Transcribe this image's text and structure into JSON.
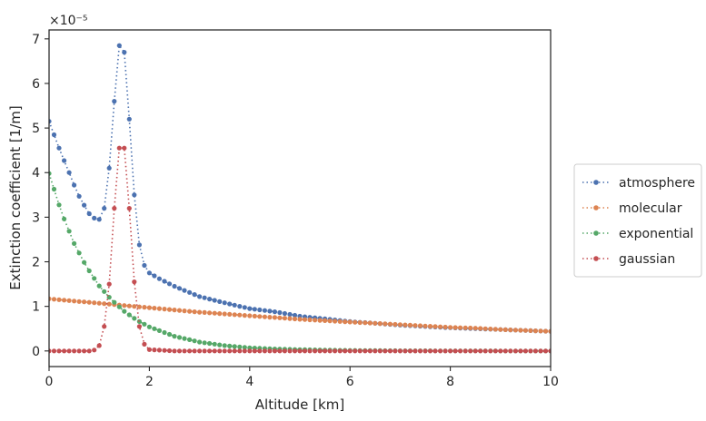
{
  "chart_data": {
    "type": "line",
    "title": "",
    "xlabel": "Altitude [km]",
    "ylabel": "Extinction coefficient [1/m]",
    "y_scale_label": "×10⁻⁵",
    "xlim": [
      0,
      10
    ],
    "ylim": [
      -0.35,
      7.2
    ],
    "x_ticks": [
      0,
      2,
      4,
      6,
      8,
      10
    ],
    "y_ticks": [
      0,
      1,
      2,
      3,
      4,
      5,
      6,
      7
    ],
    "grid": false,
    "legend_position": "right, outside plot",
    "series": [
      {
        "name": "atmosphere",
        "color": "#4c72b0",
        "x": [
          0.0,
          0.1,
          0.2,
          0.3,
          0.4,
          0.5,
          0.6,
          0.7,
          0.8,
          0.9,
          1.0,
          1.1,
          1.2,
          1.3,
          1.4,
          1.5,
          1.6,
          1.7,
          1.8,
          1.9,
          2.0,
          2.2,
          2.5,
          3.0,
          3.5,
          4.0,
          4.5,
          5.0,
          5.5,
          6.0,
          6.5,
          7.0,
          7.5,
          8.0,
          8.5,
          9.0,
          9.5,
          10.0
        ],
        "values": [
          5.15,
          4.85,
          4.55,
          4.27,
          4.0,
          3.72,
          3.47,
          3.27,
          3.08,
          2.98,
          2.95,
          3.2,
          4.1,
          5.6,
          6.85,
          6.7,
          5.2,
          3.5,
          2.38,
          1.92,
          1.75,
          1.62,
          1.45,
          1.22,
          1.08,
          0.95,
          0.88,
          0.78,
          0.72,
          0.66,
          0.62,
          0.58,
          0.55,
          0.52,
          0.5,
          0.48,
          0.46,
          0.44
        ]
      },
      {
        "name": "molecular",
        "color": "#dd8452",
        "x": [
          0.0,
          0.5,
          1.0,
          1.5,
          2.0,
          2.5,
          3.0,
          3.5,
          4.0,
          4.5,
          5.0,
          5.5,
          6.0,
          6.5,
          7.0,
          7.5,
          8.0,
          8.5,
          9.0,
          9.5,
          10.0
        ],
        "values": [
          1.17,
          1.12,
          1.07,
          1.02,
          0.97,
          0.92,
          0.87,
          0.83,
          0.79,
          0.75,
          0.71,
          0.68,
          0.65,
          0.62,
          0.59,
          0.56,
          0.53,
          0.51,
          0.48,
          0.46,
          0.44
        ]
      },
      {
        "name": "exponential",
        "color": "#55a868",
        "x": [
          0.0,
          0.25,
          0.5,
          0.75,
          1.0,
          1.25,
          1.5,
          1.75,
          2.0,
          2.5,
          3.0,
          3.5,
          4.0,
          4.5,
          5.0,
          5.5,
          6.0,
          7.0,
          8.0,
          9.0,
          10.0
        ],
        "values": [
          3.98,
          3.1,
          2.41,
          1.88,
          1.46,
          1.14,
          0.89,
          0.69,
          0.54,
          0.33,
          0.2,
          0.12,
          0.07,
          0.045,
          0.03,
          0.02,
          0.012,
          0.005,
          0.002,
          0.001,
          0.0
        ]
      },
      {
        "name": "gaussian",
        "color": "#c44e52",
        "x": [
          0.0,
          0.5,
          0.8,
          0.9,
          1.0,
          1.1,
          1.2,
          1.3,
          1.4,
          1.5,
          1.6,
          1.7,
          1.8,
          1.9,
          2.0,
          2.5,
          3.0,
          4.0,
          5.0,
          6.0,
          7.0,
          8.0,
          9.0,
          10.0
        ],
        "values": [
          0.0,
          0.0,
          0.0,
          0.02,
          0.12,
          0.55,
          1.5,
          3.2,
          4.55,
          4.55,
          3.2,
          1.55,
          0.55,
          0.15,
          0.03,
          0.0,
          0.0,
          0.0,
          0.0,
          0.0,
          0.0,
          0.0,
          0.0,
          0.0
        ]
      }
    ]
  }
}
